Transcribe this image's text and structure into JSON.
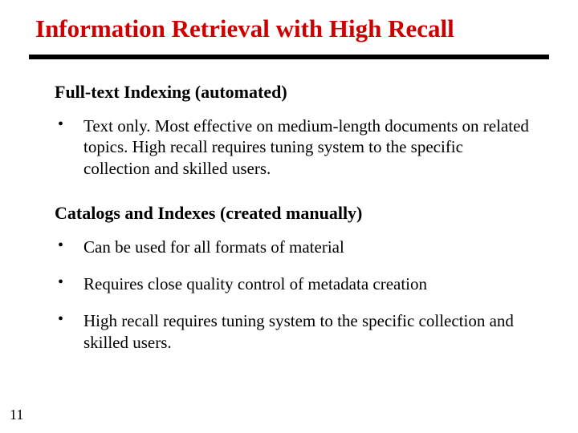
{
  "title": "Information Retrieval with High Recall",
  "title_color": "#cc0000",
  "divider_color": "#000000",
  "divider_height": 6,
  "background_color": "#ffffff",
  "title_fontsize": 31,
  "heading_fontsize": 22,
  "body_fontsize": 21,
  "sections": [
    {
      "heading": "Full-text Indexing (automated)",
      "bullets": [
        "Text only.  Most effective on medium-length documents on related topics.  High recall requires tuning system to the specific collection and skilled users."
      ]
    },
    {
      "heading": "Catalogs and Indexes (created manually)",
      "bullets": [
        "Can be used for all formats of material",
        "Requires close quality control of metadata creation",
        "High recall requires tuning system to the specific collection and skilled users."
      ]
    }
  ],
  "page_number": "11"
}
